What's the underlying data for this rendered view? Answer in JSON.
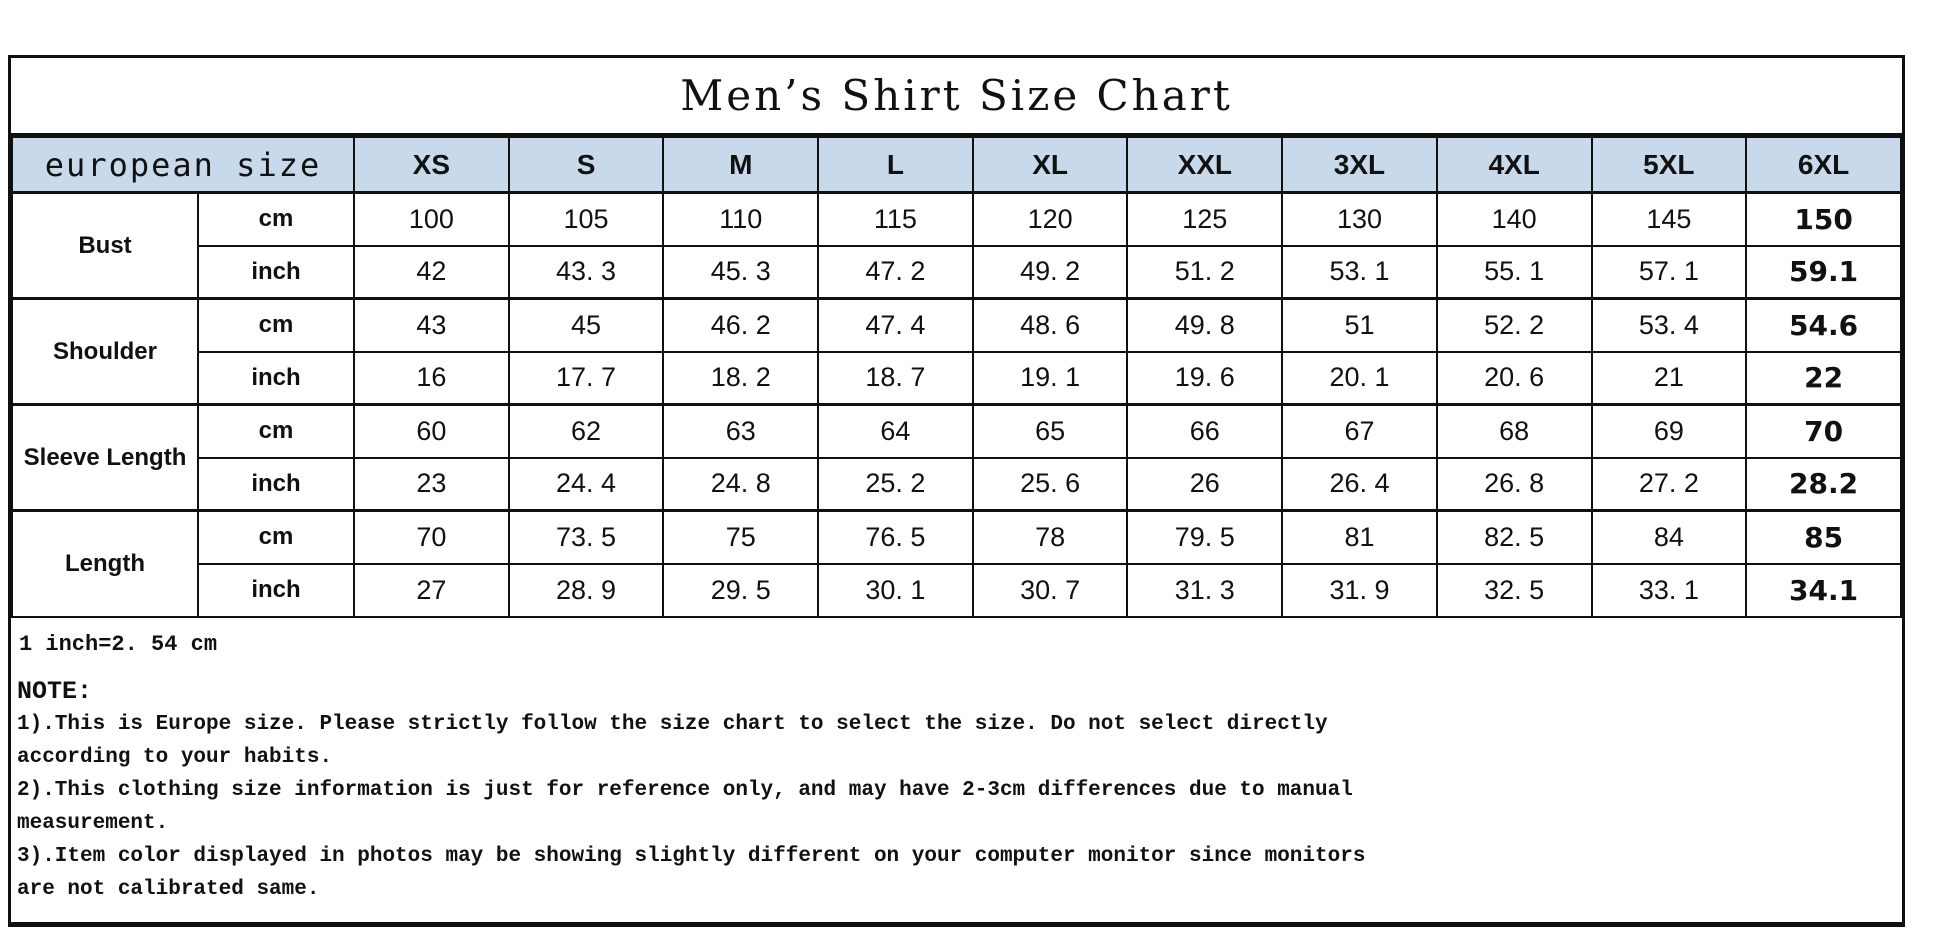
{
  "title": "Men’s Shirt Size Chart",
  "table": {
    "header_label": "european size",
    "sizes": [
      "XS",
      "S",
      "M",
      "L",
      "XL",
      "XXL",
      "3XL",
      "4XL",
      "5XL",
      "6XL"
    ],
    "measurements": [
      {
        "name": "Bust",
        "rows": [
          {
            "unit": "cm",
            "values": [
              "100",
              "105",
              "110",
              "115",
              "120",
              "125",
              "130",
              "140",
              "145",
              "150"
            ]
          },
          {
            "unit": "inch",
            "values": [
              "42",
              "43. 3",
              "45. 3",
              "47. 2",
              "49. 2",
              "51. 2",
              "53. 1",
              "55. 1",
              "57. 1",
              "59.1"
            ]
          }
        ]
      },
      {
        "name": "Shoulder",
        "rows": [
          {
            "unit": "cm",
            "values": [
              "43",
              "45",
              "46. 2",
              "47. 4",
              "48. 6",
              "49. 8",
              "51",
              "52. 2",
              "53. 4",
              "54.6"
            ]
          },
          {
            "unit": "inch",
            "values": [
              "16",
              "17. 7",
              "18. 2",
              "18. 7",
              "19. 1",
              "19. 6",
              "20. 1",
              "20. 6",
              "21",
              "22"
            ]
          }
        ]
      },
      {
        "name": "Sleeve Length",
        "rows": [
          {
            "unit": "cm",
            "values": [
              "60",
              "62",
              "63",
              "64",
              "65",
              "66",
              "67",
              "68",
              "69",
              "70"
            ]
          },
          {
            "unit": "inch",
            "values": [
              "23",
              "24. 4",
              "24. 8",
              "25. 2",
              "25. 6",
              "26",
              "26. 4",
              "26. 8",
              "27. 2",
              "28.2"
            ]
          }
        ]
      },
      {
        "name": "Length",
        "rows": [
          {
            "unit": "cm",
            "values": [
              "70",
              "73. 5",
              "75",
              "76. 5",
              "78",
              "79. 5",
              "81",
              "82. 5",
              "84",
              "85"
            ]
          },
          {
            "unit": "inch",
            "values": [
              "27",
              "28. 9",
              "29. 5",
              "30. 1",
              "30. 7",
              "31. 3",
              "31. 9",
              "32. 5",
              "33. 1",
              "34.1"
            ]
          }
        ]
      }
    ]
  },
  "footer": {
    "conversion": "1 inch=2. 54 cm",
    "note_title": "NOTE:",
    "note_lines": [
      "1).This is Europe size. Please strictly follow the size chart to select the size. Do not select directly",
      "according to your habits.",
      "2).This clothing size information is just for reference only, and may have 2-3cm differences due to manual",
      "measurement.",
      "3).Item color displayed in photos may be showing slightly different on your computer monitor since monitors",
      "are not calibrated same."
    ]
  },
  "colors": {
    "header_bg": "#c7d9eb",
    "border": "#101010",
    "page_bg": "#ffffff"
  }
}
